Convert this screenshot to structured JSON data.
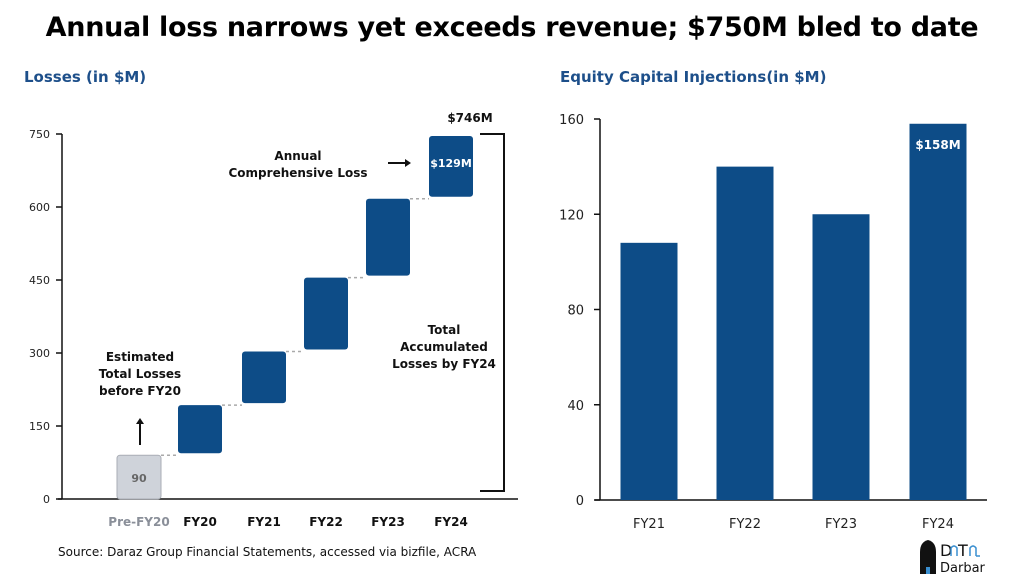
{
  "title": "Annual loss narrows yet exceeds revenue; $750M bled to date",
  "source": "Source: Daraz Group Financial Statements, accessed via bizfile, ACRA",
  "logo": {
    "line1": "DaTa",
    "line2": "Darbar"
  },
  "colors": {
    "bar": "#0d4c87",
    "pre_bar": "#cfd3da",
    "subtitle": "#1d4f8a"
  },
  "chart_data": [
    {
      "type": "waterfall",
      "title": "Losses (in $M)",
      "categories": [
        "Pre-FY20",
        "FY20",
        "FY21",
        "FY22",
        "FY23",
        "FY24"
      ],
      "values": [
        90,
        103,
        110,
        152,
        162,
        129
      ],
      "ylim": [
        0,
        750
      ],
      "yticks": [
        0,
        150,
        300,
        450,
        600,
        750
      ],
      "data_labels": {
        "pre": "90",
        "last": "$129M",
        "total": "$746M"
      },
      "annotations": {
        "annual": [
          "Annual",
          "Comprehensive Loss"
        ],
        "estimated": [
          "Estimated",
          "Total Losses",
          "before FY20"
        ],
        "total": [
          "Total",
          "Accumulated",
          "Losses by FY24"
        ]
      }
    },
    {
      "type": "bar",
      "title": "Equity Capital Injections(in $M)",
      "categories": [
        "FY21",
        "FY22",
        "FY23",
        "FY24"
      ],
      "values": [
        108,
        140,
        120,
        158
      ],
      "ylim": [
        0,
        160
      ],
      "yticks": [
        0,
        40,
        80,
        120,
        160
      ],
      "data_labels": {
        "last": "$158M"
      }
    }
  ]
}
